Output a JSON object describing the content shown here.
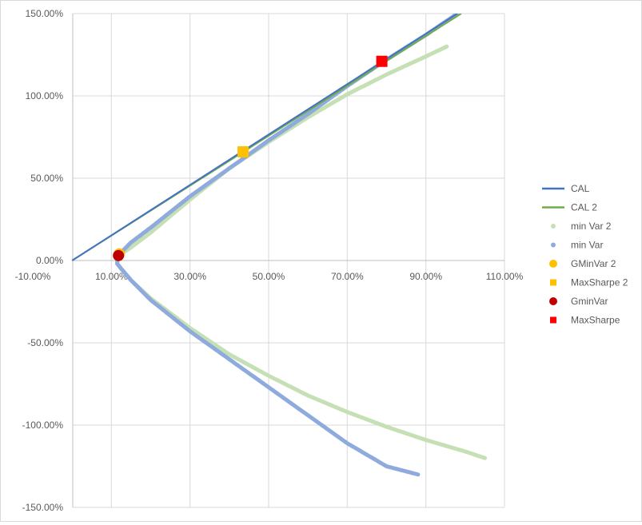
{
  "chart_data": {
    "type": "scatter",
    "title": "",
    "xlabel": "",
    "ylabel": "",
    "xlim": [
      -0.1,
      1.1
    ],
    "ylim": [
      -1.5,
      1.5
    ],
    "x_ticks": [
      -0.1,
      0.1,
      0.3,
      0.5,
      0.7,
      0.9,
      1.1
    ],
    "x_tick_labels": [
      "-10.00%",
      "10.00%",
      "30.00%",
      "50.00%",
      "70.00%",
      "90.00%",
      "110.00%"
    ],
    "y_ticks": [
      -1.5,
      -1.0,
      -0.5,
      0.0,
      0.5,
      1.0,
      1.5
    ],
    "y_tick_labels": [
      "-150.00%",
      "-100.00%",
      "-50.00%",
      "0.00%",
      "50.00%",
      "100.00%",
      "150.00%"
    ],
    "grid": true,
    "legend_position": "right",
    "series": [
      {
        "name": "CAL",
        "kind": "line",
        "color": "#4472c4",
        "x": [
          0.0,
          0.98
        ],
        "y": [
          0.0,
          1.5
        ]
      },
      {
        "name": "CAL 2",
        "kind": "line",
        "color": "#70ad47",
        "x": [
          0.0,
          0.99
        ],
        "y": [
          0.0,
          1.5
        ]
      },
      {
        "name": "min Var 2",
        "kind": "markers",
        "color": "#c5e0b4",
        "x": [
          0.953,
          0.9,
          0.8,
          0.7,
          0.6,
          0.5,
          0.4,
          0.3,
          0.2,
          0.15,
          0.125,
          0.115,
          0.115,
          0.125,
          0.15,
          0.2,
          0.3,
          0.4,
          0.5,
          0.6,
          0.7,
          0.8,
          0.9,
          1.0,
          1.05
        ],
        "y": [
          1.3,
          1.24,
          1.13,
          1.01,
          0.87,
          0.72,
          0.56,
          0.37,
          0.17,
          0.08,
          0.04,
          0.01,
          -0.02,
          -0.05,
          -0.12,
          -0.23,
          -0.41,
          -0.57,
          -0.7,
          -0.82,
          -0.92,
          -1.01,
          -1.09,
          -1.16,
          -1.2
        ]
      },
      {
        "name": "min Var",
        "kind": "markers",
        "color": "#8faadc",
        "x": [
          0.98,
          0.9,
          0.8,
          0.7,
          0.6,
          0.5,
          0.4,
          0.3,
          0.2,
          0.15,
          0.125,
          0.115,
          0.115,
          0.125,
          0.15,
          0.2,
          0.3,
          0.4,
          0.5,
          0.6,
          0.7,
          0.8,
          0.88
        ],
        "y": [
          1.5,
          1.37,
          1.22,
          1.06,
          0.89,
          0.73,
          0.56,
          0.39,
          0.2,
          0.11,
          0.05,
          0.01,
          -0.02,
          -0.05,
          -0.12,
          -0.24,
          -0.43,
          -0.6,
          -0.77,
          -0.94,
          -1.11,
          -1.25,
          -1.3
        ]
      },
      {
        "name": "GMinVar 2",
        "kind": "point",
        "shape": "circle",
        "color": "#ffc000",
        "x": [
          0.12
        ],
        "y": [
          0.04
        ]
      },
      {
        "name": "MaxSharpe 2",
        "kind": "point",
        "shape": "square",
        "color": "#ffc000",
        "x": [
          0.435
        ],
        "y": [
          0.66
        ]
      },
      {
        "name": "GminVar",
        "kind": "point",
        "shape": "circle",
        "color": "#c00000",
        "x": [
          0.118
        ],
        "y": [
          0.03
        ]
      },
      {
        "name": "MaxSharpe",
        "kind": "point",
        "shape": "square",
        "color": "#ff0000",
        "x": [
          0.788
        ],
        "y": [
          1.21
        ]
      }
    ]
  }
}
